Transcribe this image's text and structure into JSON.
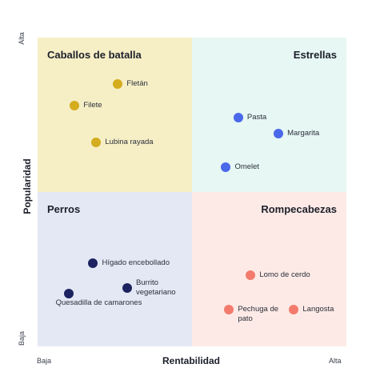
{
  "chart_data": {
    "type": "scatter",
    "title": "",
    "xlabel": "Rentabilidad",
    "ylabel": "Popularidad",
    "x_ticks": {
      "low": "Baja",
      "high": "Alta"
    },
    "y_ticks": {
      "low": "Baja",
      "high": "Alta"
    },
    "xlim": [
      0,
      100
    ],
    "ylim": [
      0,
      100
    ],
    "grid": false,
    "quadrants": [
      {
        "id": "top-left",
        "label": "Caballos de batalla",
        "color": "#f6efc6",
        "label_align": "left"
      },
      {
        "id": "top-right",
        "label": "Estrellas",
        "color": "#e6f7f4",
        "label_align": "right"
      },
      {
        "id": "bottom-left",
        "label": "Perros",
        "color": "#e4e8f4",
        "label_align": "left"
      },
      {
        "id": "bottom-right",
        "label": "Rompecabezas",
        "color": "#fdeae6",
        "label_align": "right"
      }
    ],
    "series": [
      {
        "color": "#d4ac1e",
        "points": [
          {
            "label": "Fletán",
            "x": 26,
            "y": 85
          },
          {
            "label": "Filete",
            "x": 12,
            "y": 78
          },
          {
            "label": "Lubina rayada",
            "x": 19,
            "y": 66
          }
        ]
      },
      {
        "color": "#4a68ea",
        "points": [
          {
            "label": "Pasta",
            "x": 65,
            "y": 74
          },
          {
            "label": "Margarita",
            "x": 78,
            "y": 69
          },
          {
            "label": "Omelet",
            "x": 61,
            "y": 58
          }
        ]
      },
      {
        "color": "#1c2360",
        "points": [
          {
            "label": "Hígado encebollado",
            "x": 18,
            "y": 27
          },
          {
            "label": "Burrito vegetariano",
            "x": 29,
            "y": 19
          },
          {
            "label": "Quesadilla de camarones",
            "x": 10,
            "y": 17
          }
        ]
      },
      {
        "color": "#f27b6d",
        "points": [
          {
            "label": "Lomo de cerdo",
            "x": 69,
            "y": 23
          },
          {
            "label": "Pechuga de pato",
            "x": 62,
            "y": 12
          },
          {
            "label": "Langosta",
            "x": 83,
            "y": 12
          }
        ]
      }
    ]
  }
}
